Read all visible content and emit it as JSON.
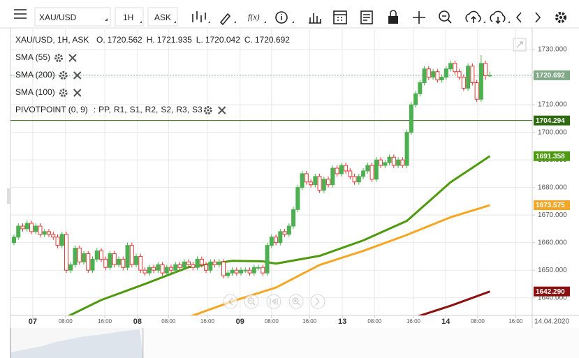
{
  "toolbar": {
    "symbol": "XAU/USD",
    "timeframe": "1H",
    "price_type": "ASK",
    "function_button": "f(x)"
  },
  "legend": {
    "instrument": "XAU/USD, 1H, ASK",
    "ohlc": [
      {
        "label": "O.",
        "value": 1720.562
      },
      {
        "label": "H.",
        "value": 1721.935
      },
      {
        "label": "L.",
        "value": 1720.042
      },
      {
        "label": "C.",
        "value": 1720.692
      }
    ]
  },
  "chart_data": {
    "type": "candlestick",
    "open": [
      1660,
      1662,
      1666,
      1665,
      1667,
      1664,
      1666,
      1663,
      1664,
      1663,
      1662,
      1659,
      1663,
      1650,
      1652,
      1658,
      1653,
      1656,
      1650,
      1654,
      1657,
      1654,
      1651,
      1656,
      1652,
      1654,
      1651,
      1659,
      1652,
      1655,
      1650,
      1649,
      1651,
      1650,
      1652,
      1649,
      1651,
      1650,
      1652,
      1651,
      1653,
      1652,
      1651,
      1654,
      1652,
      1650,
      1653,
      1652,
      1653,
      1648,
      1649,
      1650,
      1649,
      1650,
      1650,
      1649,
      1651,
      1651,
      1649,
      1659,
      1662,
      1660,
      1664,
      1663,
      1666,
      1672,
      1680,
      1685,
      1682,
      1681,
      1684,
      1679,
      1683,
      1681,
      1687,
      1685,
      1688,
      1686,
      1684,
      1682,
      1684,
      1686,
      1688,
      1683,
      1690,
      1688,
      1689,
      1691,
      1688,
      1690,
      1688,
      1700,
      1710,
      1714,
      1718,
      1723,
      1720,
      1722,
      1719,
      1720,
      1723,
      1725,
      1722,
      1720,
      1716,
      1724,
      1718,
      1712,
      1725,
      1720.562
    ],
    "high": [
      1663,
      1667,
      1667,
      1668,
      1668,
      1667,
      1667,
      1665,
      1665,
      1664,
      1663,
      1664,
      1664,
      1653,
      1659,
      1659,
      1657,
      1657,
      1655,
      1658,
      1658,
      1655,
      1657,
      1657,
      1655,
      1655,
      1660,
      1660,
      1656,
      1656,
      1651,
      1652,
      1652,
      1653,
      1653,
      1652,
      1652,
      1653,
      1653,
      1654,
      1654,
      1653,
      1655,
      1655,
      1653,
      1654,
      1654,
      1654,
      1654,
      1650,
      1651,
      1651,
      1651,
      1651,
      1651,
      1652,
      1652,
      1652,
      1660,
      1663,
      1663,
      1665,
      1665,
      1667,
      1673,
      1681,
      1686,
      1686,
      1683,
      1685,
      1685,
      1684,
      1684,
      1688,
      1688,
      1689,
      1689,
      1687,
      1685,
      1685,
      1687,
      1689,
      1689,
      1691,
      1691,
      1690,
      1692,
      1692,
      1691,
      1691,
      1701,
      1711,
      1715,
      1719,
      1724,
      1724,
      1723,
      1723,
      1721,
      1724,
      1726,
      1726,
      1723,
      1721,
      1725,
      1725,
      1719,
      1728,
      1726,
      1721.935
    ],
    "low": [
      1659,
      1661,
      1664,
      1664,
      1663,
      1663,
      1662,
      1662,
      1662,
      1661,
      1658,
      1658,
      1649,
      1649,
      1651,
      1652,
      1652,
      1649,
      1649,
      1653,
      1653,
      1650,
      1650,
      1651,
      1651,
      1650,
      1650,
      1651,
      1651,
      1649,
      1648,
      1648,
      1649,
      1649,
      1648,
      1648,
      1649,
      1649,
      1650,
      1650,
      1651,
      1650,
      1650,
      1651,
      1649,
      1649,
      1651,
      1651,
      1647,
      1647,
      1648,
      1648,
      1648,
      1649,
      1648,
      1648,
      1650,
      1648,
      1648,
      1658,
      1659,
      1659,
      1662,
      1662,
      1665,
      1671,
      1679,
      1681,
      1680,
      1680,
      1678,
      1678,
      1680,
      1680,
      1684,
      1684,
      1685,
      1683,
      1681,
      1681,
      1683,
      1685,
      1682,
      1682,
      1687,
      1687,
      1688,
      1687,
      1687,
      1687,
      1687,
      1699,
      1709,
      1713,
      1717,
      1719,
      1719,
      1718,
      1718,
      1719,
      1722,
      1721,
      1719,
      1715,
      1715,
      1717,
      1711,
      1711,
      1719,
      1720.042
    ],
    "close": [
      1662,
      1666,
      1665,
      1667,
      1664,
      1666,
      1663,
      1664,
      1663,
      1662,
      1659,
      1663,
      1650,
      1652,
      1658,
      1653,
      1656,
      1650,
      1654,
      1657,
      1654,
      1651,
      1656,
      1652,
      1654,
      1651,
      1659,
      1652,
      1655,
      1650,
      1649,
      1651,
      1650,
      1652,
      1649,
      1651,
      1650,
      1652,
      1651,
      1653,
      1652,
      1651,
      1654,
      1652,
      1650,
      1653,
      1652,
      1653,
      1648,
      1649,
      1650,
      1649,
      1650,
      1650,
      1649,
      1651,
      1651,
      1649,
      1659,
      1662,
      1660,
      1664,
      1663,
      1666,
      1672,
      1680,
      1685,
      1682,
      1681,
      1684,
      1679,
      1683,
      1681,
      1687,
      1685,
      1688,
      1686,
      1684,
      1682,
      1684,
      1686,
      1688,
      1683,
      1690,
      1688,
      1689,
      1691,
      1688,
      1690,
      1688,
      1700,
      1710,
      1714,
      1718,
      1723,
      1720,
      1722,
      1719,
      1720,
      1723,
      1725,
      1722,
      1720,
      1716,
      1724,
      1718,
      1712,
      1725,
      1720.562,
      1720.692
    ],
    "up_color": "#4caf50",
    "down_color": "#e53935",
    "xlim": [
      -0.8,
      118.7
    ],
    "xticks": [
      {
        "value": 4.3,
        "label": "07"
      },
      {
        "value": 11.8,
        "label": "08:00"
      },
      {
        "value": 20.8,
        "label": "16:00"
      },
      {
        "value": 28.3,
        "label": "08"
      },
      {
        "value": 35.4,
        "label": "08:00"
      },
      {
        "value": 44.3,
        "label": "16:00"
      },
      {
        "value": 51.8,
        "label": "09"
      },
      {
        "value": 59,
        "label": "08:00"
      },
      {
        "value": 67.7,
        "label": "16:00"
      },
      {
        "value": 75.2,
        "label": "13"
      },
      {
        "value": 82.6,
        "label": "08:00"
      },
      {
        "value": 91.5,
        "label": "16:00"
      },
      {
        "value": 98.9,
        "label": "14"
      },
      {
        "value": 106.2,
        "label": "08:00"
      },
      {
        "value": 114.9,
        "label": "16:00"
      }
    ],
    "date_label": "14.04.2020",
    "ylim": [
      1633.6,
      1736.6
    ],
    "yticks": [
      {
        "value": 1640,
        "label": "1640.000"
      },
      {
        "value": 1650,
        "label": "1650.000"
      },
      {
        "value": 1660,
        "label": "1660.000"
      },
      {
        "value": 1670,
        "label": "1670.000"
      },
      {
        "value": 1680,
        "label": "1680.000"
      },
      {
        "value": 1690,
        "label": "1690.000"
      },
      {
        "value": 1700,
        "label": "1700.000"
      },
      {
        "value": 1710,
        "label": "1710.000"
      },
      {
        "value": 1720,
        "label": "1720.000"
      },
      {
        "value": 1730,
        "label": "1730.000"
      }
    ],
    "grid": true,
    "sma": [
      {
        "name": "SMA (55)",
        "color": "#4e9a0e",
        "x": [
          12,
          20,
          30,
          40,
          50,
          57,
          60,
          70,
          80,
          90,
          100,
          109
        ],
        "values": [
          1633,
          1639.2,
          1645,
          1651.1,
          1653.4,
          1653.2,
          1652.4,
          1655.2,
          1660.8,
          1667.9,
          1681.9,
          1691.358
        ]
      },
      {
        "name": "SMA (200)",
        "color": "#8b1010",
        "x": [
          92,
          100,
          109
        ],
        "values": [
          1633,
          1637.1,
          1642.29
        ]
      },
      {
        "name": "SMA (100)",
        "color": "#f5a623",
        "x": [
          40,
          50,
          60,
          70,
          80,
          90,
          100,
          109
        ],
        "values": [
          1633,
          1638.7,
          1643.7,
          1651.9,
          1657,
          1662.8,
          1669.2,
          1673.575
        ]
      }
    ],
    "pivot": {
      "name": "PIVOTPOINT (0, 9)",
      "separator": ":",
      "value": 1704.294,
      "color": "#2d6a10",
      "levels": [
        {
          "name": "PP,",
          "color": "#1e88e5"
        },
        {
          "name": "R1,",
          "color": "#2e7d32"
        },
        {
          "name": "S1,",
          "color": "#d32f2f"
        },
        {
          "name": "R2,",
          "color": "#2e7d32"
        },
        {
          "name": "S2,",
          "color": "#ef6c00"
        },
        {
          "name": "R3,",
          "color": "#fbc02d"
        },
        {
          "name": "S3",
          "color": "#f9a825"
        }
      ]
    },
    "last_price": {
      "value": 1720.692,
      "color": "#7ea886"
    },
    "price_labels": [
      {
        "value": 1720.692,
        "label": "1720.692",
        "color": "#7ea886"
      },
      {
        "value": 1704.294,
        "label": "1704.294",
        "color": "#2d6a10"
      },
      {
        "value": 1691.358,
        "label": "1691.358",
        "color": "#4e9a0e"
      },
      {
        "value": 1673.575,
        "label": "1673.575",
        "color": "#f5a623"
      },
      {
        "value": 1642.29,
        "label": "1642.290",
        "color": "#8b1010"
      }
    ]
  }
}
